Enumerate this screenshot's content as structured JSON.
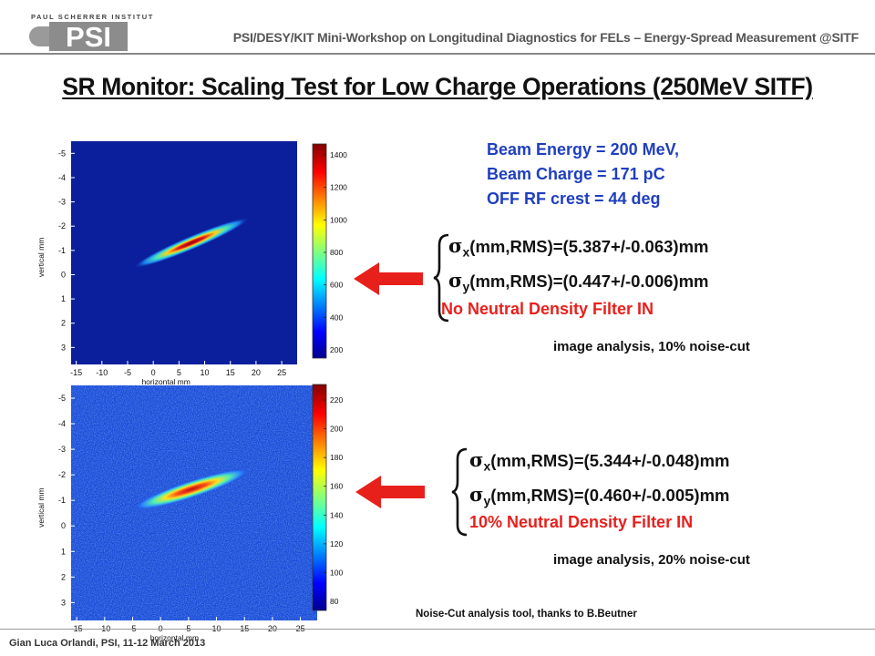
{
  "header": {
    "institute": "PAUL SCHERRER INSTITUT",
    "logo": "PSI",
    "workshop": "PSI/DESY/KIT Mini-Workshop on Longitudinal Diagnostics for FELs – Energy-Spread Measurement @SITF"
  },
  "title": "SR Monitor: Scaling Test for Low Charge Operations (250MeV SITF)",
  "beam": {
    "energy": "Beam Energy = 200 MeV,",
    "charge": "Beam Charge = 171 pC",
    "rf": "OFF RF crest = 44 deg"
  },
  "panels": [
    {
      "xlabel": "horizontal mm",
      "ylabel": "vertical mm",
      "xticks": [
        "-15",
        "-10",
        "-5",
        "0",
        "5",
        "10",
        "15",
        "20",
        "25"
      ],
      "yticks": [
        "-5",
        "-4",
        "-3",
        "-2",
        "-1",
        "0",
        "1",
        "2",
        "3"
      ],
      "colorbar_ticks": [
        "1400",
        "1200",
        "1000",
        "800",
        "600",
        "400",
        "200"
      ],
      "colors": {
        "background": "#0b1f9c",
        "noise": "none"
      },
      "sigma_x_sub": "x",
      "sigma_x": "(mm,RMS)=(5.387+/-0.063)mm",
      "sigma_y_sub": "y",
      "sigma_y": "(mm,RMS)=(0.447+/-0.006)mm",
      "filter": "No Neutral Density Filter IN",
      "analysis": "image analysis, 10% noise-cut"
    },
    {
      "xlabel": "horizontal mm",
      "ylabel": "vertical mm",
      "xticks": [
        "-15",
        "-10",
        "-5",
        "0",
        "5",
        "10",
        "15",
        "20",
        "25"
      ],
      "yticks": [
        "-5",
        "-4",
        "-3",
        "-2",
        "-1",
        "0",
        "1",
        "2",
        "3"
      ],
      "colorbar_ticks": [
        "220",
        "200",
        "180",
        "160",
        "140",
        "120",
        "100",
        "80"
      ],
      "colors": {
        "background": "#1a46d6",
        "noise": "speckle"
      },
      "sigma_x_sub": "x",
      "sigma_x": "(mm,RMS)=(5.344+/-0.048)mm",
      "sigma_y_sub": "y",
      "sigma_y": "(mm,RMS)=(0.460+/-0.005)mm",
      "filter": "10% Neutral Density Filter IN",
      "analysis": "image analysis, 20% noise-cut"
    }
  ],
  "credit": "Noise-Cut analysis tool, thanks to B.Beutner",
  "footer": "Gian Luca Orlandi, PSI, 11-12 March 2013"
}
